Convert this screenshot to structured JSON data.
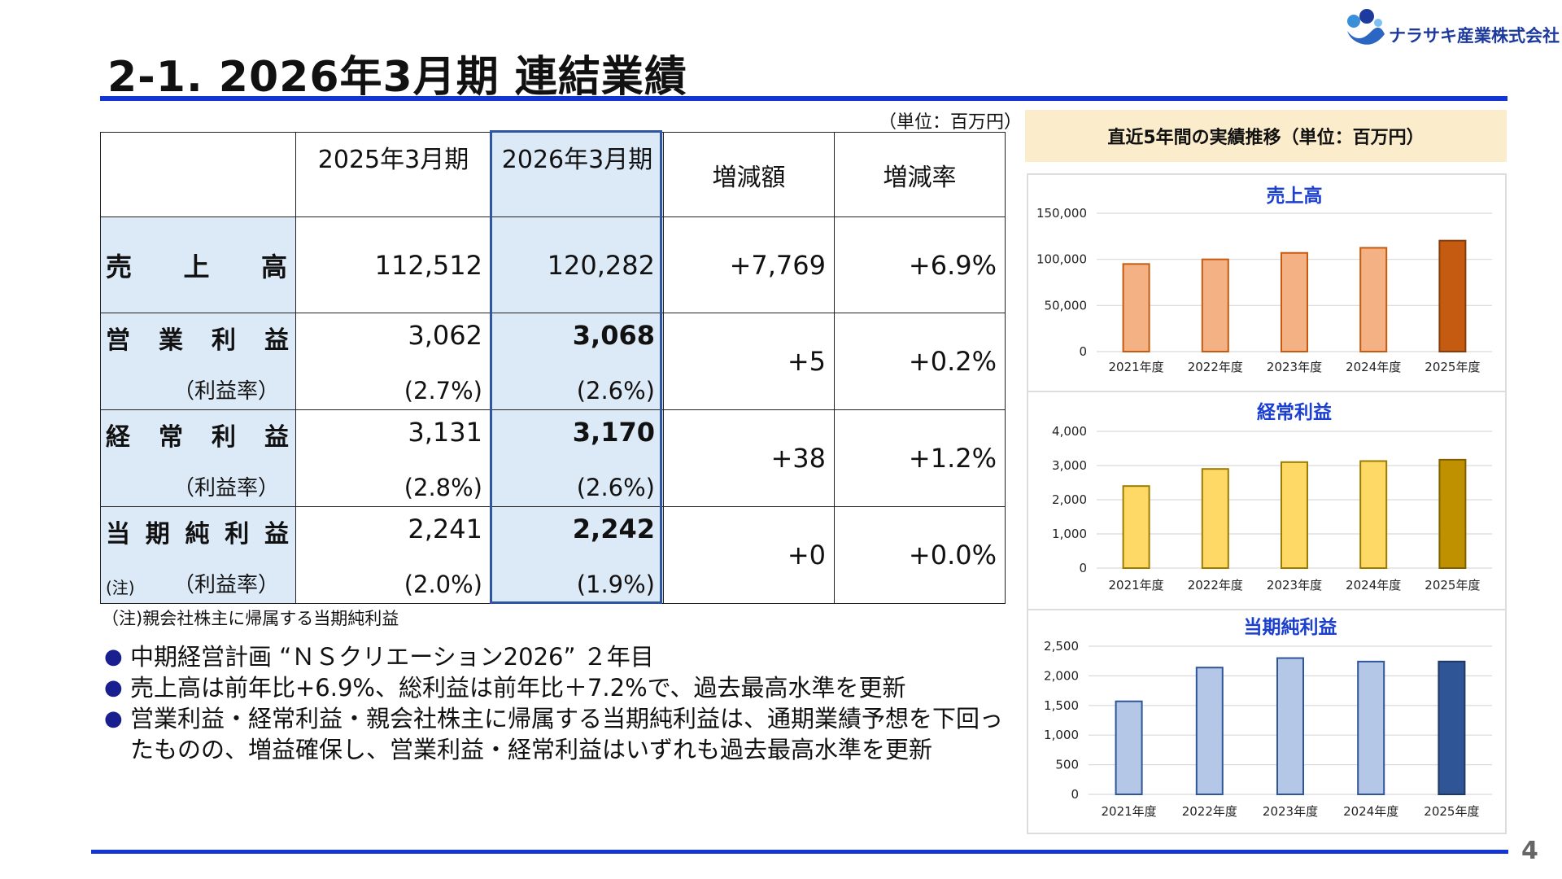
{
  "header": {
    "title": "2-1. 2026年3月期 連結業績",
    "company": "ナラサキ産業株式会社",
    "page_number": "4"
  },
  "table": {
    "unit": "（単位：百万円）",
    "columns": [
      "",
      "2025年3月期",
      "2026年3月期",
      "増減額",
      "増減率"
    ],
    "rows": {
      "sales": {
        "label_chars": [
          "売",
          "上",
          "高"
        ],
        "prev": "112,512",
        "cur": "120,282",
        "diff": "+7,769",
        "rate": "+6.9%"
      },
      "op": {
        "label_chars": [
          "営",
          "業",
          "利",
          "益"
        ],
        "sub": "（利益率）",
        "prev": "3,062",
        "prev_ratio": "(2.7%)",
        "cur": "3,068",
        "cur_ratio": "(2.6%)",
        "diff": "+5",
        "rate": "+0.2%"
      },
      "ord": {
        "label_chars": [
          "経",
          "常",
          "利",
          "益"
        ],
        "sub": "（利益率）",
        "prev": "3,131",
        "prev_ratio": "(2.8%)",
        "cur": "3,170",
        "cur_ratio": "(2.6%)",
        "diff": "+38",
        "rate": "+1.2%"
      },
      "net": {
        "label_chars": [
          "当",
          "期",
          "純",
          "利",
          "益"
        ],
        "note": "(注)",
        "sub": "（利益率）",
        "prev": "2,241",
        "prev_ratio": "(2.0%)",
        "cur": "2,242",
        "cur_ratio": "(1.9%)",
        "diff": "+0",
        "rate": "+0.0%"
      }
    },
    "footnote": "（注)親会社株主に帰属する当期純利益"
  },
  "bullets": [
    "中期経営計画 “ＮＳクリエーション2026” ２年目",
    "売上高は前年比+6.9%、総利益は前年比＋7.2%で、過去最高水準を更新",
    "営業利益・経常利益・親会社株主に帰属する当期純利益は、通期業績予想を下回ったものの、増益確保し、営業利益・経常利益はいずれも過去最高水準を更新"
  ],
  "charts_header": "直近5年間の実績推移（単位：百万円）",
  "chart_data": [
    {
      "type": "bar",
      "title": "売上高",
      "categories": [
        "2021年度",
        "2022年度",
        "2023年度",
        "2024年度",
        "2025年度"
      ],
      "values": [
        95000,
        100000,
        107000,
        112512,
        120282
      ],
      "ylim": [
        0,
        150000
      ],
      "yticks": [
        0,
        50000,
        100000,
        150000
      ],
      "ytick_labels": [
        "0",
        "50,000",
        "100,000",
        "150,000"
      ],
      "grid": true,
      "colors": {
        "normal": "#f4b183",
        "normal_edge": "#c55a11",
        "highlight": "#c55a11",
        "highlight_edge": "#843c0c"
      }
    },
    {
      "type": "bar",
      "title": "経常利益",
      "categories": [
        "2021年度",
        "2022年度",
        "2023年度",
        "2024年度",
        "2025年度"
      ],
      "values": [
        2400,
        2900,
        3100,
        3131,
        3170
      ],
      "ylim": [
        0,
        4000
      ],
      "yticks": [
        0,
        1000,
        2000,
        3000,
        4000
      ],
      "ytick_labels": [
        "0",
        "1,000",
        "2,000",
        "3,000",
        "4,000"
      ],
      "grid": true,
      "colors": {
        "normal": "#ffd966",
        "normal_edge": "#9c7c00",
        "highlight": "#bf9000",
        "highlight_edge": "#7f6000"
      }
    },
    {
      "type": "bar",
      "title": "当期純利益",
      "categories": [
        "2021年度",
        "2022年度",
        "2023年度",
        "2024年度",
        "2025年度"
      ],
      "values": [
        1570,
        2140,
        2300,
        2241,
        2242
      ],
      "ylim": [
        0,
        2500
      ],
      "yticks": [
        0,
        500,
        1000,
        1500,
        2000,
        2500
      ],
      "ytick_labels": [
        "0",
        "500",
        "1,000",
        "1,500",
        "2,000",
        "2,500"
      ],
      "grid": true,
      "colors": {
        "normal": "#b4c7e7",
        "normal_edge": "#2f5597",
        "highlight": "#2f5597",
        "highlight_edge": "#1f3864"
      }
    }
  ]
}
